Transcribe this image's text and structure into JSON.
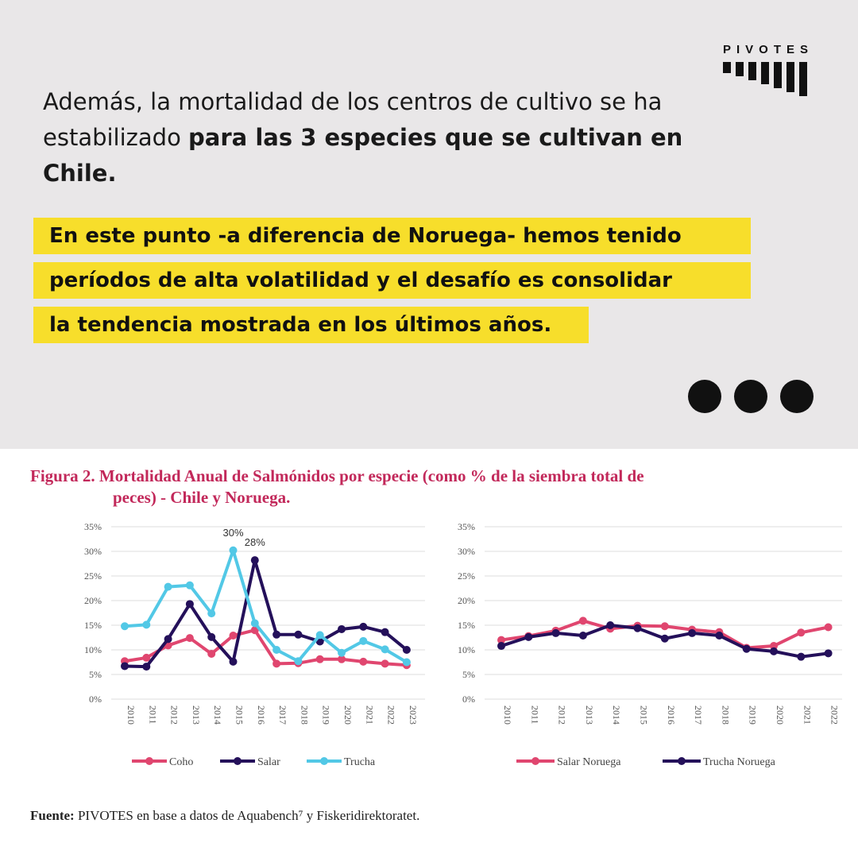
{
  "logo": {
    "text": "PIVOTES"
  },
  "intro": {
    "plain": "Además, la mortalidad de los centros de cultivo se ha estabilizado ",
    "bold": "para las 3 especies que se cultivan en Chile."
  },
  "highlight": [
    "En este punto -a diferencia de Noruega- hemos tenido",
    "períodos de alta volatilidad y el desafío es consolidar",
    "la tendencia mostrada en los últimos años."
  ],
  "figure": {
    "title_line1": "Figura 2. Mortalidad Anual de Salmónidos por especie (como % de la siembra total de",
    "title_line2": "peces) - Chile y Noruega."
  },
  "source": {
    "bold": "Fuente:",
    "text": " PIVOTES en base a datos de Aquabench⁷ y Fiskeridirektoratet."
  },
  "colors": {
    "coho": "#e0466f",
    "salar": "#24105a",
    "trucha": "#52c8e6",
    "accent": "#c2285a",
    "highlight": "#f7de2b"
  },
  "chart_data": [
    {
      "type": "line",
      "title": "",
      "x": [
        "2010",
        "2011",
        "2012",
        "2013",
        "2014",
        "2015",
        "2016",
        "2017",
        "2018",
        "2019",
        "2020",
        "2021",
        "2022",
        "2023"
      ],
      "ylim": [
        0,
        35
      ],
      "yticks": [
        "0%",
        "5%",
        "10%",
        "15%",
        "20%",
        "25%",
        "30%",
        "35%"
      ],
      "grid": true,
      "legend": "bottom",
      "annotations": [
        "30%",
        "28%"
      ],
      "series": [
        {
          "name": "Coho",
          "color": "#e0466f",
          "values": [
            7.7,
            8.4,
            10.9,
            12.4,
            9.2,
            12.9,
            14.0,
            7.2,
            7.3,
            8.1,
            8.1,
            7.6,
            7.2,
            6.9
          ]
        },
        {
          "name": "Salar",
          "color": "#24105a",
          "values": [
            6.7,
            6.6,
            12.2,
            19.3,
            12.6,
            7.6,
            28.2,
            13.1,
            13.1,
            11.7,
            14.2,
            14.7,
            13.6,
            10.0
          ]
        },
        {
          "name": "Trucha",
          "color": "#52c8e6",
          "values": [
            14.8,
            15.1,
            22.8,
            23.1,
            17.4,
            30.2,
            15.4,
            10.0,
            7.7,
            13.0,
            9.4,
            11.8,
            10.1,
            7.5
          ]
        }
      ]
    },
    {
      "type": "line",
      "title": "",
      "x": [
        "2010",
        "2011",
        "2012",
        "2013",
        "2014",
        "2015",
        "2016",
        "2017",
        "2018",
        "2019",
        "2020",
        "2021",
        "2022"
      ],
      "ylim": [
        0,
        35
      ],
      "yticks": [
        "0%",
        "5%",
        "10%",
        "15%",
        "20%",
        "25%",
        "30%",
        "35%"
      ],
      "grid": true,
      "legend": "bottom",
      "series": [
        {
          "name": "Salar Noruega",
          "color": "#e0466f",
          "values": [
            12.0,
            12.8,
            13.9,
            15.9,
            14.3,
            14.9,
            14.8,
            14.1,
            13.6,
            10.4,
            10.8,
            13.5,
            14.6
          ]
        },
        {
          "name": "Trucha Noruega",
          "color": "#24105a",
          "values": [
            10.8,
            12.6,
            13.4,
            12.9,
            15.0,
            14.4,
            12.3,
            13.4,
            12.9,
            10.2,
            9.7,
            8.6,
            9.3
          ]
        }
      ]
    }
  ]
}
